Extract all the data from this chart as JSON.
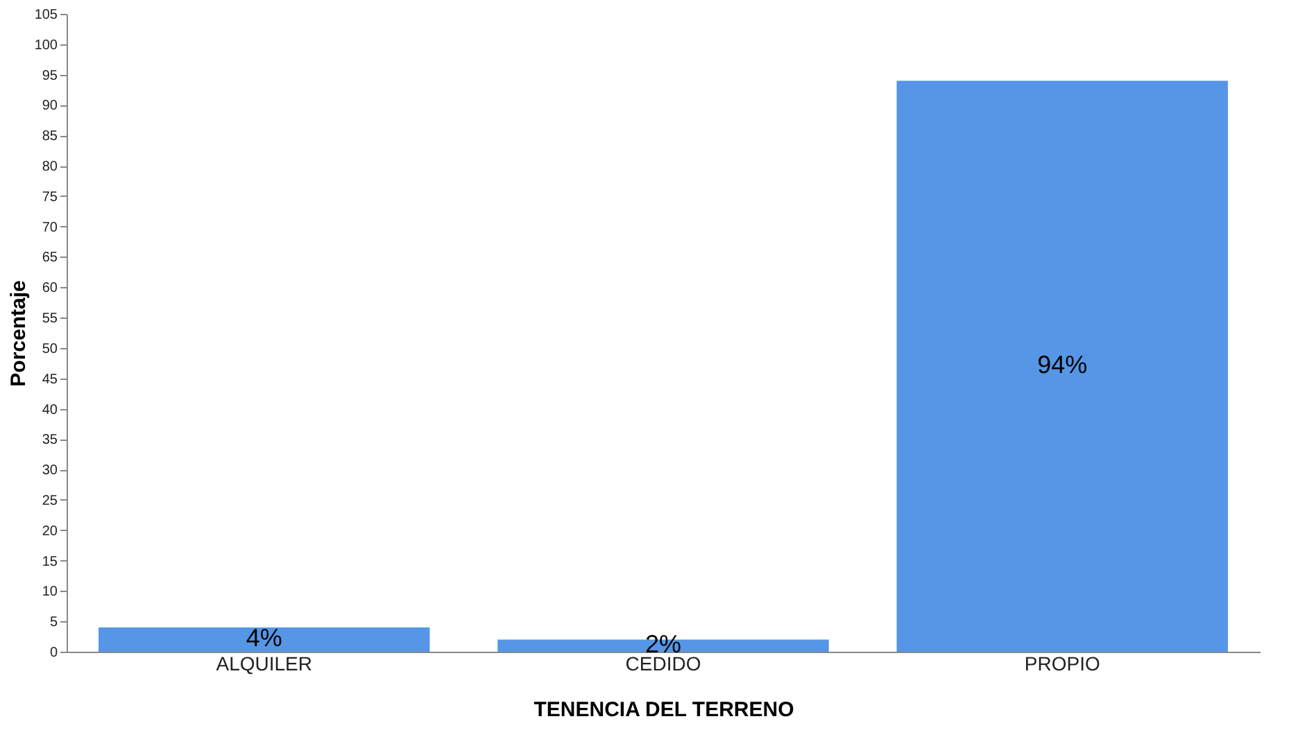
{
  "chart_data": {
    "type": "bar",
    "xlabel": "TENENCIA DEL TERRENO",
    "ylabel": "Porcentaje",
    "categories": [
      "ALQUILER",
      "CEDIDO",
      "PROPIO"
    ],
    "values": [
      4,
      2,
      94
    ],
    "value_labels": [
      "4%",
      "2%",
      "94%"
    ],
    "color": "#5596e6",
    "ylim": [
      0,
      105
    ],
    "yticks": [
      0,
      5,
      10,
      15,
      20,
      25,
      30,
      35,
      40,
      45,
      50,
      55,
      60,
      65,
      70,
      75,
      80,
      85,
      90,
      95,
      100,
      105
    ],
    "grid": false
  }
}
